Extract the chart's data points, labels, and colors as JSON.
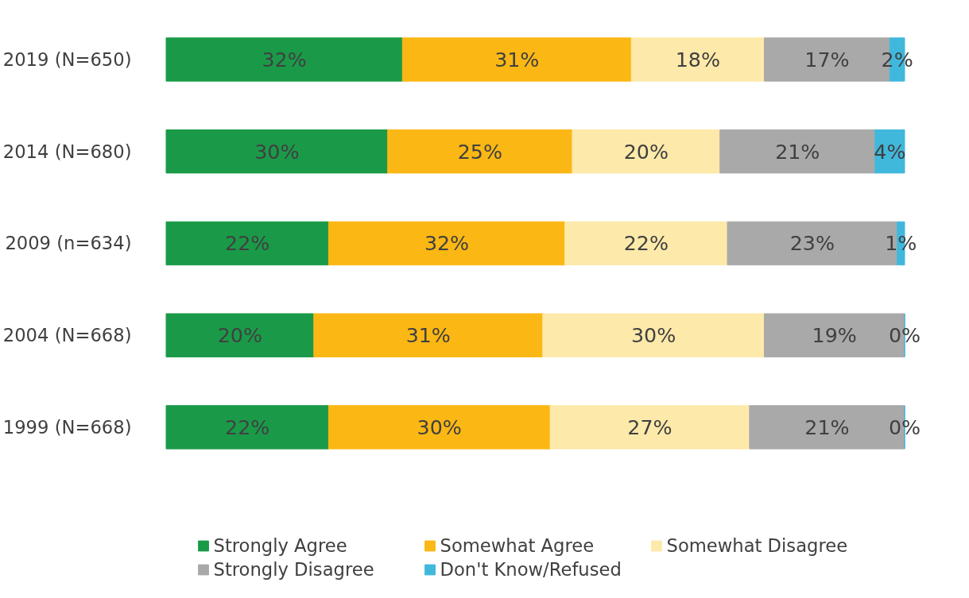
{
  "chart_data": {
    "type": "bar",
    "orientation": "horizontal",
    "stacked": true,
    "categories": [
      "2019 (N=650)",
      "2014 (N=680)",
      "2009 (n=634)",
      "2004 (N=668)",
      "1999 (N=668)"
    ],
    "tick_labels": "y",
    "grid": false,
    "legend": "bottom",
    "series": [
      {
        "name": "Strongly Agree",
        "color": "#1a9a48",
        "values": [
          32,
          30,
          22,
          20,
          22
        ],
        "value_labels": [
          "32%",
          "30%",
          "22%",
          "20%",
          "22%"
        ]
      },
      {
        "name": "Somewhat Agree",
        "color": "#fbb714",
        "values": [
          31,
          25,
          32,
          31,
          30
        ],
        "value_labels": [
          "31%",
          "25%",
          "32%",
          "31%",
          "30%"
        ]
      },
      {
        "name": "Somewhat Disagree",
        "color": "#fde9a9",
        "values": [
          18,
          20,
          22,
          30,
          27
        ],
        "value_labels": [
          "18%",
          "20%",
          "22%",
          "30%",
          "27%"
        ]
      },
      {
        "name": "Strongly Disagree",
        "color": "#a9a9a9",
        "values": [
          17,
          21,
          23,
          19,
          21
        ],
        "value_labels": [
          "17%",
          "21%",
          "23%",
          "19%",
          "21%"
        ]
      },
      {
        "name": "Don't Know/Refused",
        "color": "#40b8dc",
        "values": [
          2,
          4,
          1,
          0,
          0
        ],
        "value_labels": [
          "2%",
          "4%",
          "1%",
          "0%",
          "0%"
        ]
      }
    ]
  }
}
